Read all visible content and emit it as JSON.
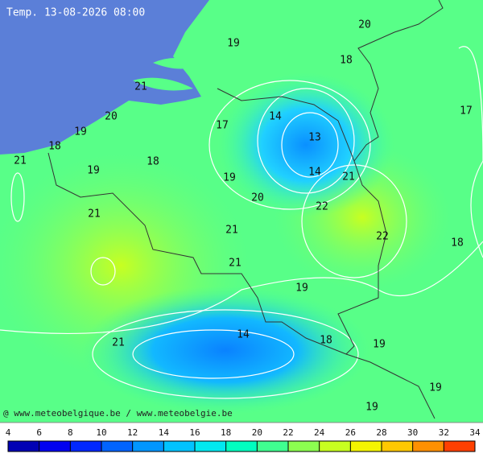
{
  "title": "Temp. 13-08-2026 08:00",
  "credit": "@ www.meteobelgique.be / www.meteobelgie.be",
  "contour_labels": [
    "20",
    "19",
    "18",
    "21",
    "17",
    "20",
    "14",
    "17",
    "19",
    "13",
    "18",
    "21",
    "18",
    "19",
    "14",
    "21",
    "19",
    "20",
    "22",
    "21",
    "21",
    "22",
    "18",
    "21",
    "19",
    "14",
    "18",
    "21",
    "19",
    "19",
    "19"
  ],
  "colorbar": {
    "ticks": [
      4,
      6,
      8,
      10,
      12,
      14,
      16,
      18,
      20,
      22,
      24,
      26,
      28,
      30,
      32,
      34
    ],
    "colors": [
      "#0000b4",
      "#0000f0",
      "#0028ff",
      "#0064ff",
      "#0096ff",
      "#00c3ff",
      "#00e8f0",
      "#00ffc0",
      "#40ff90",
      "#8cff50",
      "#c8ff20",
      "#f5f500",
      "#ffc800",
      "#ff9000",
      "#ff4000"
    ]
  }
}
